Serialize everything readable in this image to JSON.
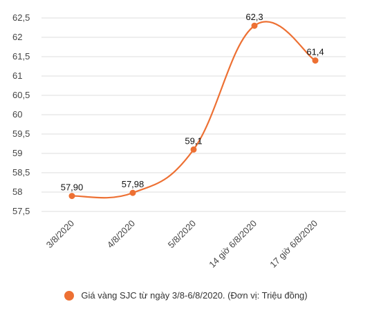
{
  "chart_data": {
    "type": "line",
    "categories": [
      "3/8/2020",
      "4/8/2020",
      "5/8/2020",
      "14 giờ 6/8/2020",
      "17 giờ 6/8/2020"
    ],
    "series": [
      {
        "name": "Giá vàng SJC từ ngày 3/8-6/8/2020. (Đơn vị: Triệu đồng)",
        "values": [
          57.9,
          57.98,
          59.1,
          62.3,
          61.4
        ],
        "data_labels": [
          "57,90",
          "57,98",
          "59,1",
          "62,3",
          "61,4"
        ],
        "color": "#ed7033"
      }
    ],
    "yticks": [
      {
        "value": 57.5,
        "label": "57,5"
      },
      {
        "value": 58,
        "label": "58"
      },
      {
        "value": 58.5,
        "label": "58,5"
      },
      {
        "value": 59,
        "label": "59"
      },
      {
        "value": 59.5,
        "label": "59,5"
      },
      {
        "value": 60,
        "label": "60"
      },
      {
        "value": 60.5,
        "label": "60,5"
      },
      {
        "value": 61,
        "label": "61"
      },
      {
        "value": 61.5,
        "label": "61,5"
      },
      {
        "value": 62,
        "label": "62"
      },
      {
        "value": 62.5,
        "label": "62,5"
      }
    ],
    "ylim": [
      57.5,
      62.5
    ],
    "grid": true,
    "legend_position": "bottom",
    "x_tick_rotation": -45
  }
}
